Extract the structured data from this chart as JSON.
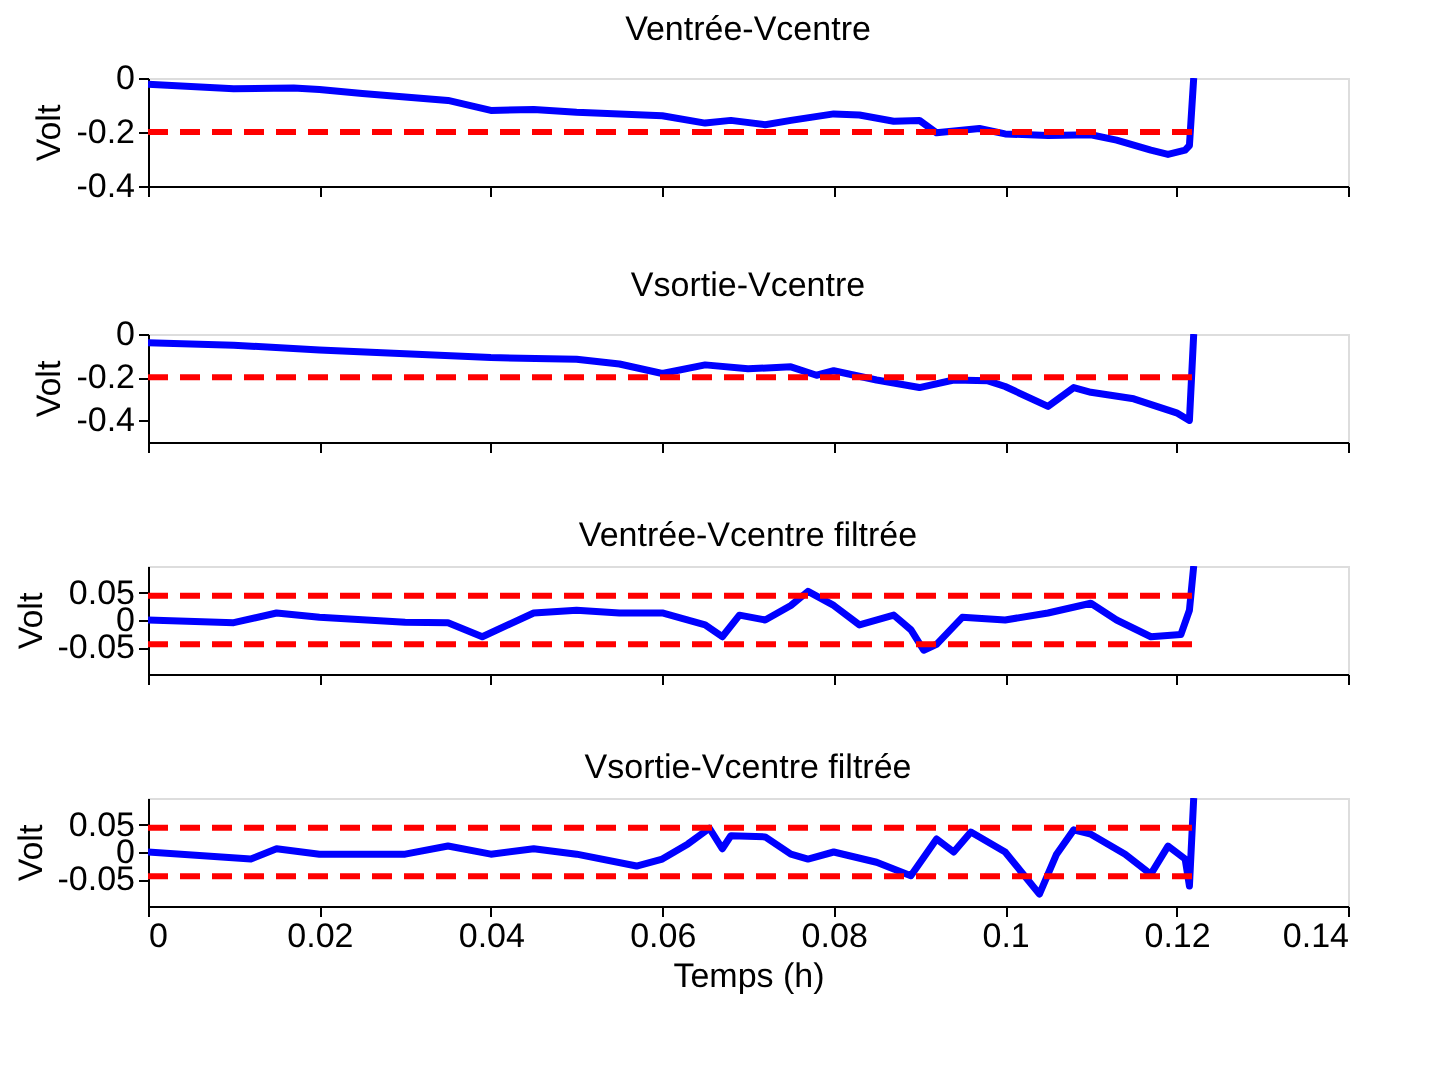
{
  "chart_data": [
    {
      "type": "line",
      "title": "Ventrée-Vcentre",
      "ylabel": "Volt",
      "tick_labels": "y",
      "grid": false,
      "xlim": [
        0,
        0.14
      ],
      "xticks": [
        0,
        0.02,
        0.04,
        0.06,
        0.08,
        0.1,
        0.12,
        0.14
      ],
      "ylim": [
        -0.4,
        0
      ],
      "yticks": [
        -0.4,
        -0.2,
        0
      ],
      "x": [
        0,
        0.01,
        0.017,
        0.02,
        0.025,
        0.03,
        0.035,
        0.04,
        0.045,
        0.05,
        0.055,
        0.06,
        0.065,
        0.068,
        0.072,
        0.075,
        0.08,
        0.083,
        0.087,
        0.09,
        0.092,
        0.097,
        0.1,
        0.105,
        0.11,
        0.113,
        0.117,
        0.119,
        0.121,
        0.1215,
        0.122
      ],
      "series": [
        {
          "color": "#0000ff",
          "values": [
            -0.023,
            -0.04,
            -0.037,
            -0.043,
            -0.057,
            -0.07,
            -0.083,
            -0.12,
            -0.117,
            -0.127,
            -0.133,
            -0.14,
            -0.167,
            -0.157,
            -0.173,
            -0.157,
            -0.133,
            -0.137,
            -0.16,
            -0.157,
            -0.203,
            -0.187,
            -0.207,
            -0.213,
            -0.21,
            -0.23,
            -0.267,
            -0.283,
            -0.267,
            -0.25,
            0
          ]
        }
      ],
      "ref_lines": [
        {
          "axis": "y",
          "value": -0.2,
          "color": "#ff0000",
          "line_style": "dashed"
        }
      ]
    },
    {
      "type": "line",
      "title": "Vsortie-Vcentre",
      "ylabel": "Volt",
      "tick_labels": "y",
      "grid": false,
      "xlim": [
        0,
        0.14
      ],
      "xticks": [
        0,
        0.02,
        0.04,
        0.06,
        0.08,
        0.1,
        0.12,
        0.14
      ],
      "ylim": [
        -0.5,
        0
      ],
      "yticks": [
        -0.4,
        -0.2,
        0
      ],
      "x": [
        0,
        0.01,
        0.02,
        0.03,
        0.04,
        0.05,
        0.055,
        0.06,
        0.065,
        0.07,
        0.075,
        0.078,
        0.08,
        0.085,
        0.09,
        0.094,
        0.098,
        0.1,
        0.105,
        0.108,
        0.11,
        0.115,
        0.12,
        0.1215,
        0.122
      ],
      "series": [
        {
          "color": "#0000ff",
          "values": [
            -0.04,
            -0.052,
            -0.074,
            -0.091,
            -0.109,
            -0.117,
            -0.139,
            -0.183,
            -0.143,
            -0.161,
            -0.152,
            -0.191,
            -0.17,
            -0.213,
            -0.248,
            -0.213,
            -0.217,
            -0.243,
            -0.335,
            -0.248,
            -0.27,
            -0.3,
            -0.365,
            -0.4,
            0
          ]
        }
      ],
      "ref_lines": [
        {
          "axis": "y",
          "value": -0.2,
          "color": "#ff0000",
          "line_style": "dashed"
        }
      ]
    },
    {
      "type": "line",
      "title": "Ventrée-Vcentre filtrée",
      "ylabel": "Volt",
      "tick_labels": "y",
      "grid": false,
      "xlim": [
        0,
        0.14
      ],
      "xticks": [
        0,
        0.02,
        0.04,
        0.06,
        0.08,
        0.1,
        0.12,
        0.14
      ],
      "ylim": [
        -0.1,
        0.1
      ],
      "yticks": [
        -0.05,
        0,
        0.05
      ],
      "x": [
        0,
        0.01,
        0.015,
        0.02,
        0.03,
        0.035,
        0.039,
        0.045,
        0.05,
        0.055,
        0.06,
        0.065,
        0.067,
        0.069,
        0.072,
        0.075,
        0.077,
        0.08,
        0.083,
        0.087,
        0.089,
        0.0905,
        0.092,
        0.095,
        0.1,
        0.105,
        0.11,
        0.113,
        0.117,
        0.1205,
        0.1215,
        0.122
      ],
      "series": [
        {
          "color": "#0000ff",
          "values": [
            0,
            -0.005,
            0.013,
            0.005,
            -0.004,
            -0.005,
            -0.031,
            0.013,
            0.018,
            0.013,
            0.013,
            -0.009,
            -0.031,
            0.009,
            0,
            0.027,
            0.053,
            0.027,
            -0.009,
            0.009,
            -0.018,
            -0.056,
            -0.045,
            0.005,
            0,
            0.013,
            0.031,
            0,
            -0.031,
            -0.027,
            0.018,
            0.1
          ]
        }
      ],
      "ref_lines": [
        {
          "axis": "y",
          "value": 0.045,
          "color": "#ff0000",
          "line_style": "dashed"
        },
        {
          "axis": "y",
          "value": -0.045,
          "color": "#ff0000",
          "line_style": "dashed"
        }
      ]
    },
    {
      "type": "line",
      "title": "Vsortie-Vcentre filtrée",
      "ylabel": "Volt",
      "xlabel": "Temps (h)",
      "grid": false,
      "xlim": [
        0,
        0.14
      ],
      "xticks": [
        0,
        0.02,
        0.04,
        0.06,
        0.08,
        0.1,
        0.12,
        0.14
      ],
      "ylim": [
        -0.1,
        0.1
      ],
      "yticks": [
        -0.05,
        0,
        0.05
      ],
      "x": [
        0,
        0.012,
        0.015,
        0.02,
        0.03,
        0.035,
        0.04,
        0.045,
        0.05,
        0.057,
        0.06,
        0.063,
        0.0655,
        0.067,
        0.068,
        0.072,
        0.075,
        0.077,
        0.08,
        0.085,
        0.089,
        0.092,
        0.094,
        0.096,
        0.1,
        0.104,
        0.106,
        0.108,
        0.11,
        0.114,
        0.117,
        0.119,
        0.121,
        0.1215,
        0.122
      ],
      "series": [
        {
          "color": "#0000ff",
          "values": [
            0,
            -0.013,
            0.006,
            -0.004,
            -0.004,
            0.011,
            -0.004,
            0.006,
            -0.004,
            -0.026,
            -0.013,
            0.015,
            0.044,
            0.006,
            0.03,
            0.028,
            -0.004,
            -0.013,
            0,
            -0.019,
            -0.044,
            0.024,
            0,
            0.037,
            0,
            -0.078,
            -0.004,
            0.041,
            0.033,
            -0.004,
            -0.041,
            0.011,
            -0.013,
            -0.063,
            0.1
          ]
        }
      ],
      "ref_lines": [
        {
          "axis": "y",
          "value": 0.045,
          "color": "#ff0000",
          "line_style": "dashed"
        },
        {
          "axis": "y",
          "value": -0.045,
          "color": "#ff0000",
          "line_style": "dashed"
        }
      ]
    }
  ]
}
